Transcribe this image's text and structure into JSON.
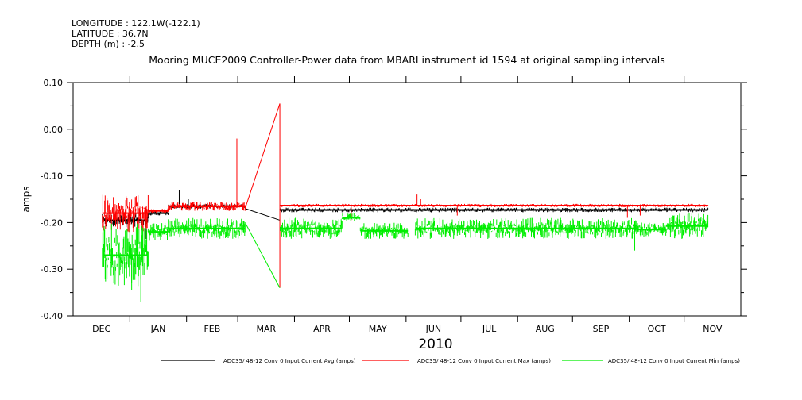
{
  "header": {
    "longitude": "LONGITUDE : 122.1W(-122.1)",
    "latitude": "LATITUDE : 36.7N",
    "depth": "DEPTH (m) : -2.5"
  },
  "chart_data": {
    "type": "line",
    "title": "Mooring MUCE2009 Controller-Power data from MBARI instrument id 1594 at original sampling intervals",
    "xlabel": "2010",
    "ylabel": "amps",
    "ylim": [
      -0.4,
      0.1
    ],
    "yticks": [
      "0.10",
      "0.00",
      "-0.10",
      "-0.20",
      "-0.30",
      "-0.40"
    ],
    "ytick_values": [
      0.1,
      0.0,
      -0.1,
      -0.2,
      -0.3,
      -0.4
    ],
    "x_unit": "days since 2009-12-01",
    "xlim": [
      0,
      365
    ],
    "month_labels": [
      "DEC",
      "JAN",
      "FEB",
      "MAR",
      "APR",
      "MAY",
      "JUN",
      "JUL",
      "AUG",
      "SEP",
      "OCT",
      "NOV"
    ],
    "month_starts": [
      0,
      31,
      62,
      90,
      121,
      151,
      182,
      212,
      243,
      273,
      304,
      334
    ],
    "legend_position": "bottom",
    "series": [
      {
        "name": "ADC35/ 48-12 Conv 0 Input Current Avg (amps)",
        "color": "#000000",
        "segments": [
          [
            16,
            41,
            -0.21,
            -0.18
          ],
          [
            41,
            52,
            -0.185,
            -0.175
          ],
          [
            52,
            94,
            -0.17,
            -0.16
          ],
          [
            113,
            347,
            -0.178,
            -0.168
          ]
        ],
        "connectors": [
          [
            [
              94,
              -0.17
            ],
            [
              113,
              -0.195
            ]
          ]
        ],
        "spikes": [
          [
            40,
            -0.235
          ],
          [
            58,
            -0.13
          ],
          [
            63,
            -0.15
          ]
        ]
      },
      {
        "name": "ADC35/ 48-12 Conv 0 Input Current Max (amps)",
        "color": "#ff0000",
        "segments": [
          [
            16,
            41,
            -0.22,
            -0.14
          ],
          [
            41,
            52,
            -0.18,
            -0.17
          ],
          [
            52,
            94,
            -0.175,
            -0.155
          ],
          [
            113,
            347,
            -0.167,
            -0.16
          ]
        ],
        "connectors": [
          [
            [
              94,
              -0.17
            ],
            [
              113,
              0.055
            ],
            [
              113,
              -0.34
            ]
          ]
        ],
        "spikes": [
          [
            89.5,
            -0.02
          ],
          [
            152,
            -0.195
          ],
          [
            188,
            -0.14
          ],
          [
            190,
            -0.15
          ],
          [
            210,
            -0.185
          ],
          [
            303,
            -0.19
          ],
          [
            310,
            -0.185
          ]
        ]
      },
      {
        "name": "ADC35/ 48-12 Conv 0 Input Current Min (amps)",
        "color": "#00ee00",
        "segments": [
          [
            16,
            41,
            -0.34,
            -0.2
          ],
          [
            41,
            52,
            -0.24,
            -0.2
          ],
          [
            52,
            94,
            -0.235,
            -0.19
          ],
          [
            113,
            147,
            -0.235,
            -0.19
          ],
          [
            147,
            157,
            -0.2,
            -0.18
          ],
          [
            157,
            183,
            -0.235,
            -0.2
          ],
          [
            187,
            308,
            -0.235,
            -0.19
          ],
          [
            308,
            324,
            -0.23,
            -0.2
          ],
          [
            324,
            347,
            -0.235,
            -0.18
          ]
        ],
        "connectors": [
          [
            [
              94,
              -0.2
            ],
            [
              113,
              -0.34
            ]
          ]
        ],
        "spikes": [
          [
            37,
            -0.37
          ],
          [
            32,
            -0.345
          ],
          [
            307,
            -0.26
          ]
        ]
      }
    ]
  }
}
